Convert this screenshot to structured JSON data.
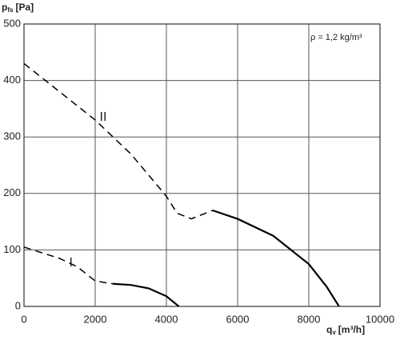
{
  "chart_data": {
    "type": "line",
    "y_label": {
      "symbol": "p",
      "subscript": "fs",
      "unit": "[Pa]"
    },
    "x_label": {
      "symbol": "q",
      "subscript": "v",
      "unit": "[m³/h]"
    },
    "annotation": "ρ = 1,2 kg/m³",
    "xlim": [
      0,
      10000
    ],
    "xticks": [
      0,
      2000,
      4000,
      6000,
      8000,
      10000
    ],
    "ylim": [
      0,
      500
    ],
    "yticks": [
      0,
      100,
      200,
      300,
      400,
      500
    ],
    "grid": true,
    "series": [
      {
        "name": "II",
        "color": "#000000",
        "parts": [
          {
            "style": "dashed",
            "x": [
              0,
              1000,
              2000,
              3000,
              4000,
              4300,
              4700,
              5100,
              5300
            ],
            "values": [
              430,
              380,
              330,
              270,
              195,
              165,
              155,
              165,
              170
            ]
          },
          {
            "style": "solid",
            "x": [
              5300,
              6000,
              7000,
              8000,
              8500,
              8850
            ],
            "values": [
              170,
              155,
              125,
              75,
              35,
              0
            ]
          }
        ]
      },
      {
        "name": "I",
        "color": "#000000",
        "parts": [
          {
            "style": "dashed",
            "x": [
              0,
              1000,
              1500,
              2000,
              2500
            ],
            "values": [
              105,
              85,
              70,
              45,
              40
            ]
          },
          {
            "style": "solid",
            "x": [
              2500,
              3000,
              3500,
              4000,
              4350
            ],
            "values": [
              40,
              38,
              32,
              18,
              0
            ]
          }
        ]
      }
    ]
  }
}
